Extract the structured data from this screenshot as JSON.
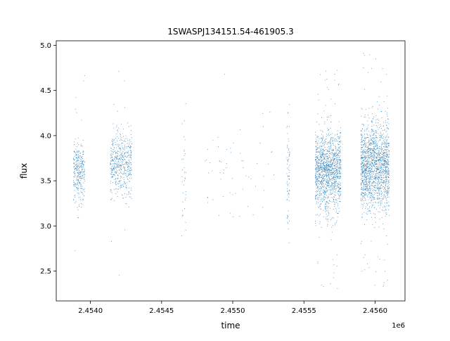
{
  "chart_data": {
    "type": "scatter",
    "title": "1SWASPJ134151.54-461905.3",
    "xlabel": "time",
    "ylabel": "flux",
    "x_offset_label": "1e6",
    "xlim": [
      2453760,
      2456210
    ],
    "ylim": [
      2.17,
      5.05
    ],
    "x_ticks": [
      2453700,
      2454000,
      2454500,
      2455000,
      2455500,
      2456000
    ],
    "x_tick_labels": [
      "",
      "2.4540",
      "2.4545",
      "2.4550",
      "2.4555",
      "2.4560"
    ],
    "y_ticks": [
      2.5,
      3.0,
      3.5,
      4.0,
      4.5,
      5.0
    ],
    "y_tick_labels": [
      "2.5",
      "3.0",
      "3.5",
      "4.0",
      "4.5",
      "5.0"
    ],
    "grid": false,
    "legend": "none",
    "point_color": "#1f77b4",
    "clusters": [
      {
        "x_range": [
          2453880,
          2453960
        ],
        "center": 3.6,
        "spread": 0.15,
        "count": 320,
        "min": 2.65,
        "max": 4.75
      },
      {
        "x_range": [
          2454140,
          2454290
        ],
        "center": 3.68,
        "spread": 0.18,
        "count": 520,
        "min": 2.3,
        "max": 4.82
      },
      {
        "x_range": [
          2454640,
          2454670
        ],
        "center": 3.4,
        "spread": 0.4,
        "count": 35,
        "min": 2.4,
        "max": 4.82
      },
      {
        "x_range": [
          2454800,
          2455300
        ],
        "center": 3.6,
        "spread": 0.3,
        "count": 60,
        "min": 2.95,
        "max": 4.77
      },
      {
        "x_range": [
          2455380,
          2455400
        ],
        "center": 3.6,
        "spread": 0.3,
        "count": 70,
        "min": 2.75,
        "max": 4.35
      },
      {
        "x_range": [
          2455580,
          2455760
        ],
        "center": 3.6,
        "spread": 0.22,
        "count": 1400,
        "min": 2.3,
        "max": 4.78
      },
      {
        "x_range": [
          2455900,
          2456100
        ],
        "center": 3.65,
        "spread": 0.24,
        "count": 1700,
        "min": 2.3,
        "max": 4.92
      }
    ]
  }
}
